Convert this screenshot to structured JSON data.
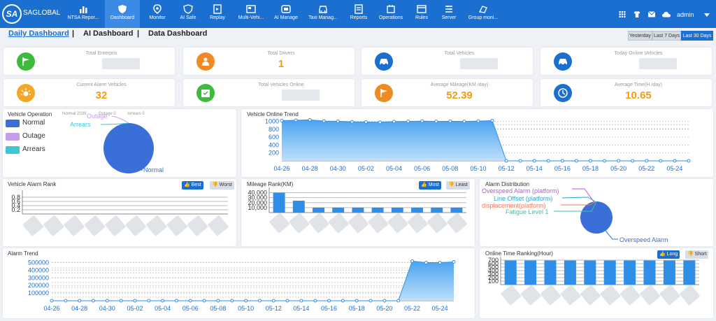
{
  "header": {
    "brand": "SAGLOBAL",
    "logo_text": "SA",
    "user": "admin",
    "nav": [
      {
        "label": "NTSA Repor...",
        "icon": "report-chart-icon"
      },
      {
        "label": "Dashboard",
        "icon": "shield-icon",
        "active": true
      },
      {
        "label": "Monitor",
        "icon": "location-pin-icon"
      },
      {
        "label": "AI Safe",
        "icon": "ai-shield-icon"
      },
      {
        "label": "Replay",
        "icon": "replay-icon"
      },
      {
        "label": "Multi-Vehi...",
        "icon": "multi-vehicle-icon"
      },
      {
        "label": "AI Manage",
        "icon": "ai-manage-icon"
      },
      {
        "label": "Taxi Manag...",
        "icon": "taxi-icon"
      },
      {
        "label": "Reports",
        "icon": "reports-icon"
      },
      {
        "label": "Operations",
        "icon": "operations-icon"
      },
      {
        "label": "Rules",
        "icon": "rules-icon"
      },
      {
        "label": "Server",
        "icon": "server-icon"
      },
      {
        "label": "Group moni...",
        "icon": "group-monitor-icon"
      }
    ],
    "right_icons": [
      "grid-icon",
      "shirt-icon",
      "mail-icon",
      "cloud-icon"
    ]
  },
  "tabs": [
    {
      "label": "Daily Dashboard",
      "active": true
    },
    {
      "label": "AI Dashboard"
    },
    {
      "label": "Data Dashboard"
    }
  ],
  "separator": "|",
  "ranges": [
    {
      "label": "Yesterday"
    },
    {
      "label": "Last 7 Days"
    },
    {
      "label": "Last 30 Days",
      "active": true
    }
  ],
  "stats": [
    {
      "label": "Total Enterpris",
      "value": "",
      "icon": "flag-icon",
      "color": "#3dbb3d"
    },
    {
      "label": "Total Drivers",
      "value": "1",
      "icon": "driver-icon",
      "color": "#f08a24"
    },
    {
      "label": "Total Vehicles",
      "value": "",
      "icon": "car-icon",
      "color": "#1a6fd1"
    },
    {
      "label": "Today Online Vehicles",
      "value": "",
      "icon": "car-online-icon",
      "color": "#1a6fd1"
    },
    {
      "label": "Current Alarm Vehicles",
      "value": "32",
      "icon": "alarm-sun-icon",
      "color": "#f5a623"
    },
    {
      "label": "Total Vehicles Online",
      "value": "",
      "icon": "calendar-icon",
      "color": "#3dbb3d"
    },
    {
      "label": "Average Mileage(KM /day)",
      "value": "52.39",
      "icon": "flag-icon",
      "color": "#f08a24"
    },
    {
      "label": "Average Time(H /day)",
      "value": "10.65",
      "icon": "clock-icon",
      "color": "#1a6fd1"
    }
  ],
  "vehicle_operation": {
    "title": "Vehicle Operation",
    "summary": [
      {
        "text": "Normal 2039"
      },
      {
        "text": "Outage 0"
      },
      {
        "text": "Arrears 0"
      }
    ],
    "legend": [
      {
        "label": "Normal",
        "color": "#3a6fd8"
      },
      {
        "label": "Outage",
        "color": "#c79de8"
      },
      {
        "label": "Arrears",
        "color": "#3fc6d3"
      }
    ],
    "labels": {
      "normal": "Normal",
      "outage": "Outage",
      "arrears": "Arrears"
    }
  },
  "online_trend": {
    "title": "Vehicle Online Trend"
  },
  "alarm_rank": {
    "title": "Vehicle Alarm Rank",
    "best": "Best",
    "worst": "Worst"
  },
  "mileage_rank": {
    "title": "Mileage Rank(KM)",
    "most": "Most",
    "least": "Least"
  },
  "alarm_distribution": {
    "title": "Alarm Distribution",
    "labels": [
      {
        "text": "Overspeed Alarm (platform)",
        "color": "#b45ad8"
      },
      {
        "text": "Line Offset (platform)",
        "color": "#2aa7c9"
      },
      {
        "text": "displacement(platform)",
        "color": "#f07c5a"
      },
      {
        "text": "Fatigue Level 1",
        "color": "#3bc3a6"
      },
      {
        "text": "Overspeed Alarm",
        "color": "#3a6fd8"
      }
    ]
  },
  "alarm_trend": {
    "title": "Alarm Trend"
  },
  "online_time": {
    "title": "Online Time Ranking(Hour)",
    "long": "Long",
    "short": "Short"
  },
  "chart_data": [
    {
      "type": "area",
      "title": "Vehicle Online Trend",
      "x": [
        "04-26",
        "04-27",
        "04-28",
        "04-29",
        "04-30",
        "05-01",
        "05-02",
        "05-03",
        "05-04",
        "05-05",
        "05-06",
        "05-07",
        "05-08",
        "05-09",
        "05-10",
        "05-11",
        "05-12",
        "05-13",
        "05-14",
        "05-15",
        "05-16",
        "05-17",
        "05-18",
        "05-19",
        "05-20",
        "05-21",
        "05-22",
        "05-23",
        "05-24",
        "05-25"
      ],
      "x_ticks": [
        "04-26",
        "04-28",
        "04-30",
        "05-02",
        "05-04",
        "05-06",
        "05-08",
        "05-10",
        "05-12",
        "05-14",
        "05-16",
        "05-18",
        "05-20",
        "05-22",
        "05-24"
      ],
      "y_ticks": [
        "1000",
        "800",
        "600",
        "400",
        "200"
      ],
      "ylim": [
        0,
        1100
      ],
      "values": [
        1020,
        1030,
        1040,
        1010,
        1005,
        990,
        985,
        980,
        995,
        1000,
        1010,
        1000,
        1005,
        1000,
        1010,
        1020,
        0,
        0,
        0,
        0,
        0,
        0,
        0,
        0,
        0,
        0,
        0,
        0,
        0,
        0
      ]
    },
    {
      "type": "bar",
      "title": "Vehicle Alarm Rank",
      "y_ticks": [
        "0.8",
        "0.6",
        "0.4",
        "0.2"
      ],
      "ylim": [
        0,
        1
      ],
      "values": [
        0,
        0,
        0,
        0,
        0,
        0,
        0,
        0,
        0,
        0
      ]
    },
    {
      "type": "bar",
      "title": "Mileage Rank(KM)",
      "y_ticks": [
        "40,000",
        "30,000",
        "20,000",
        "10,000"
      ],
      "ylim": [
        0,
        45000
      ],
      "values": [
        40000,
        24000,
        10000,
        10000,
        10000,
        10000,
        10000,
        10000,
        10000,
        10000
      ]
    },
    {
      "type": "pie",
      "title": "Vehicle Operation",
      "slices": [
        {
          "name": "Normal",
          "value": 2039
        },
        {
          "name": "Outage",
          "value": 0
        },
        {
          "name": "Arrears",
          "value": 0
        }
      ]
    },
    {
      "type": "pie",
      "title": "Alarm Distribution",
      "slices": [
        {
          "name": "Overspeed Alarm",
          "value": 97
        },
        {
          "name": "Overspeed Alarm (platform)",
          "value": 1
        },
        {
          "name": "Line Offset (platform)",
          "value": 1
        },
        {
          "name": "displacement(platform)",
          "value": 1
        },
        {
          "name": "Fatigue Level 1",
          "value": 1
        }
      ]
    },
    {
      "type": "area",
      "title": "Alarm Trend",
      "x": [
        "04-26",
        "04-27",
        "04-28",
        "04-29",
        "04-30",
        "05-01",
        "05-02",
        "05-03",
        "05-04",
        "05-05",
        "05-06",
        "05-07",
        "05-08",
        "05-09",
        "05-10",
        "05-11",
        "05-12",
        "05-13",
        "05-14",
        "05-15",
        "05-16",
        "05-17",
        "05-18",
        "05-19",
        "05-20",
        "05-21",
        "05-22",
        "05-23",
        "05-24",
        "05-25"
      ],
      "x_ticks": [
        "04-26",
        "04-28",
        "04-30",
        "05-02",
        "05-04",
        "05-06",
        "05-08",
        "05-10",
        "05-12",
        "05-14",
        "05-16",
        "05-18",
        "05-20",
        "05-22",
        "05-24"
      ],
      "y_ticks": [
        "500000",
        "400000",
        "300000",
        "200000",
        "100000"
      ],
      "ylim": [
        0,
        560000
      ],
      "values": [
        0,
        0,
        0,
        0,
        0,
        0,
        0,
        0,
        0,
        0,
        0,
        0,
        0,
        0,
        0,
        0,
        0,
        0,
        0,
        0,
        0,
        0,
        0,
        0,
        0,
        0,
        520000,
        500000,
        500000,
        510000
      ]
    },
    {
      "type": "bar",
      "title": "Online Time Ranking(Hour)",
      "y_ticks": [
        "700",
        "600",
        "500",
        "400",
        "300",
        "200",
        "100"
      ],
      "ylim": [
        0,
        720
      ],
      "values": [
        690,
        690,
        690,
        690,
        690,
        690,
        690,
        690,
        690,
        690
      ]
    }
  ]
}
